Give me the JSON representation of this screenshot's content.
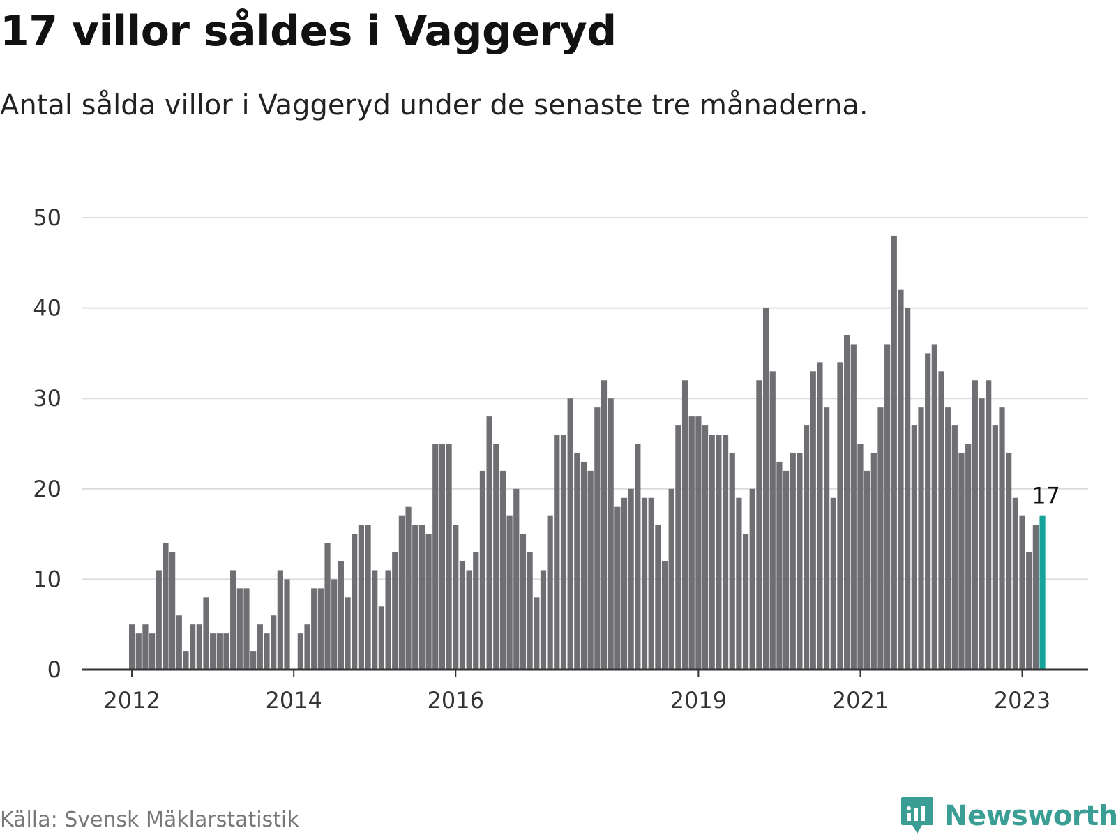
{
  "title": "17 villor såldes i Vaggeryd",
  "subtitle": "Antal sålda villor i Vaggeryd under de senaste tre månaderna.",
  "source": "Källa: Svensk Mäklarstatistik",
  "brand": {
    "name": "Newsworthy",
    "logo_icon": "bar-chart-speech-bubble-icon",
    "color": "#3a9e94"
  },
  "colors": {
    "bar": "#6e6e73",
    "highlight": "#16a39a",
    "grid": "#dcdcdc",
    "axis": "#333333"
  },
  "chart_data": {
    "type": "bar",
    "title": "17 villor såldes i Vaggeryd",
    "subtitle": "Antal sålda villor i Vaggeryd under de senaste tre månaderna.",
    "xlabel": "",
    "ylabel": "",
    "ylim": [
      0,
      50
    ],
    "yticks": [
      0,
      10,
      20,
      30,
      40,
      50
    ],
    "grid": true,
    "xtick_labels": [
      {
        "label": "2012",
        "index": 0
      },
      {
        "label": "2014",
        "index": 24
      },
      {
        "label": "2016",
        "index": 48
      },
      {
        "label": "2019",
        "index": 84
      },
      {
        "label": "2021",
        "index": 108
      },
      {
        "label": "2023",
        "index": 132
      }
    ],
    "series": [
      {
        "values": [
          5,
          4,
          5,
          4,
          11,
          14,
          13,
          6,
          2,
          5,
          5,
          8,
          4,
          4,
          4,
          11,
          9,
          9,
          2,
          5,
          4,
          6,
          11,
          10,
          0,
          4,
          5,
          9,
          9,
          14,
          10,
          12,
          8,
          15,
          16,
          16,
          11,
          7,
          11,
          13,
          17,
          18,
          16,
          16,
          15,
          25,
          25,
          25,
          16,
          12,
          11,
          13,
          22,
          28,
          25,
          22,
          17,
          20,
          15,
          13,
          8,
          11,
          17,
          26,
          26,
          30,
          24,
          23,
          22,
          29,
          32,
          30,
          18,
          19,
          20,
          25,
          19,
          19,
          16,
          12,
          20,
          27,
          32,
          28,
          28,
          27,
          26,
          26,
          26,
          24,
          19,
          15,
          20,
          32,
          40,
          33,
          23,
          22,
          24,
          24,
          27,
          33,
          34,
          29,
          19,
          34,
          37,
          36,
          25,
          22,
          24,
          29,
          36,
          48,
          42,
          40,
          27,
          29,
          35,
          36,
          33,
          29,
          27,
          24,
          25,
          32,
          30,
          32,
          27,
          29,
          24,
          19,
          17,
          13,
          16,
          17
        ]
      }
    ],
    "highlight_index": 135,
    "data_labels": [
      {
        "index": 135,
        "text": "17"
      }
    ]
  }
}
